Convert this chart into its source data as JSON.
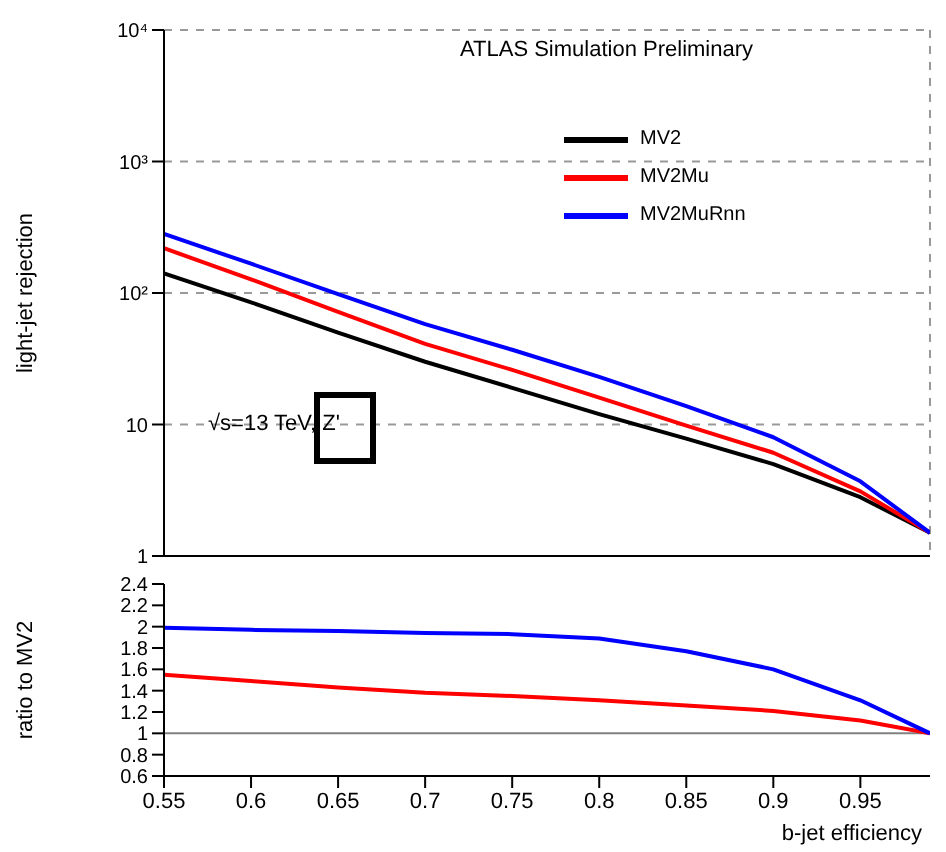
{
  "chart_data": [
    {
      "type": "line",
      "ylabel": "light-jet rejection",
      "x": [
        0.55,
        0.6,
        0.65,
        0.7,
        0.75,
        0.8,
        0.85,
        0.9,
        0.95,
        0.99
      ],
      "series": [
        {
          "name": "MV2",
          "color": "#000000",
          "values": [
            141,
            85,
            50,
            30,
            19,
            12,
            7.8,
            5.0,
            2.8,
            1.5
          ]
        },
        {
          "name": "MV2Mu",
          "color": "#ff0000",
          "values": [
            219,
            127,
            72,
            41,
            26,
            16,
            9.8,
            6.1,
            3.1,
            1.5
          ]
        },
        {
          "name": "MV2MuRnn",
          "color": "#0000ff",
          "values": [
            281,
            167,
            98,
            58,
            37,
            23,
            13.8,
            8.0,
            3.7,
            1.5
          ]
        }
      ],
      "xlim": [
        0.55,
        0.99
      ],
      "xticks": [
        0.55,
        0.6,
        0.65,
        0.7,
        0.75,
        0.8,
        0.85,
        0.9,
        0.95
      ],
      "ylim": [
        1,
        10000
      ],
      "yticks": [
        1,
        10,
        {
          "value": 100,
          "label": "10²"
        },
        {
          "value": 1000,
          "label": "10³"
        },
        {
          "value": 10000,
          "label": "10⁴"
        }
      ],
      "log": "y",
      "grid": true,
      "legend": "top right",
      "tick_labels": "y",
      "marker": "none",
      "line_style": "solid",
      "annotations": [
        "ATLAS Simulation Preliminary",
        "√s=13 TeV, Z'"
      ]
    },
    {
      "type": "line",
      "ylabel": "ratio to MV2",
      "xlabel": "b-jet efficiency",
      "x": [
        0.55,
        0.6,
        0.65,
        0.7,
        0.75,
        0.8,
        0.85,
        0.9,
        0.95,
        0.99
      ],
      "series": [
        {
          "color": "#ff0000",
          "values": [
            1.55,
            1.49,
            1.43,
            1.38,
            1.35,
            1.31,
            1.26,
            1.21,
            1.12,
            1.0
          ]
        },
        {
          "color": "#0000ff",
          "values": [
            1.99,
            1.97,
            1.96,
            1.94,
            1.93,
            1.89,
            1.77,
            1.6,
            1.31,
            1.0
          ]
        }
      ],
      "xlim": [
        0.55,
        0.99
      ],
      "xticks": [
        0.55,
        0.6,
        0.65,
        0.7,
        0.75,
        0.8,
        0.85,
        0.9,
        0.95
      ],
      "ylim": [
        0.6,
        2.4
      ],
      "yticks": [
        0.6,
        0.8,
        1,
        1.2,
        1.4,
        1.6,
        1.8,
        2,
        2.2,
        2.4
      ],
      "ref_lines": [
        {
          "axis": "y",
          "value": 1,
          "color": "#808080"
        }
      ],
      "marker": "none",
      "line_style": "solid"
    }
  ]
}
